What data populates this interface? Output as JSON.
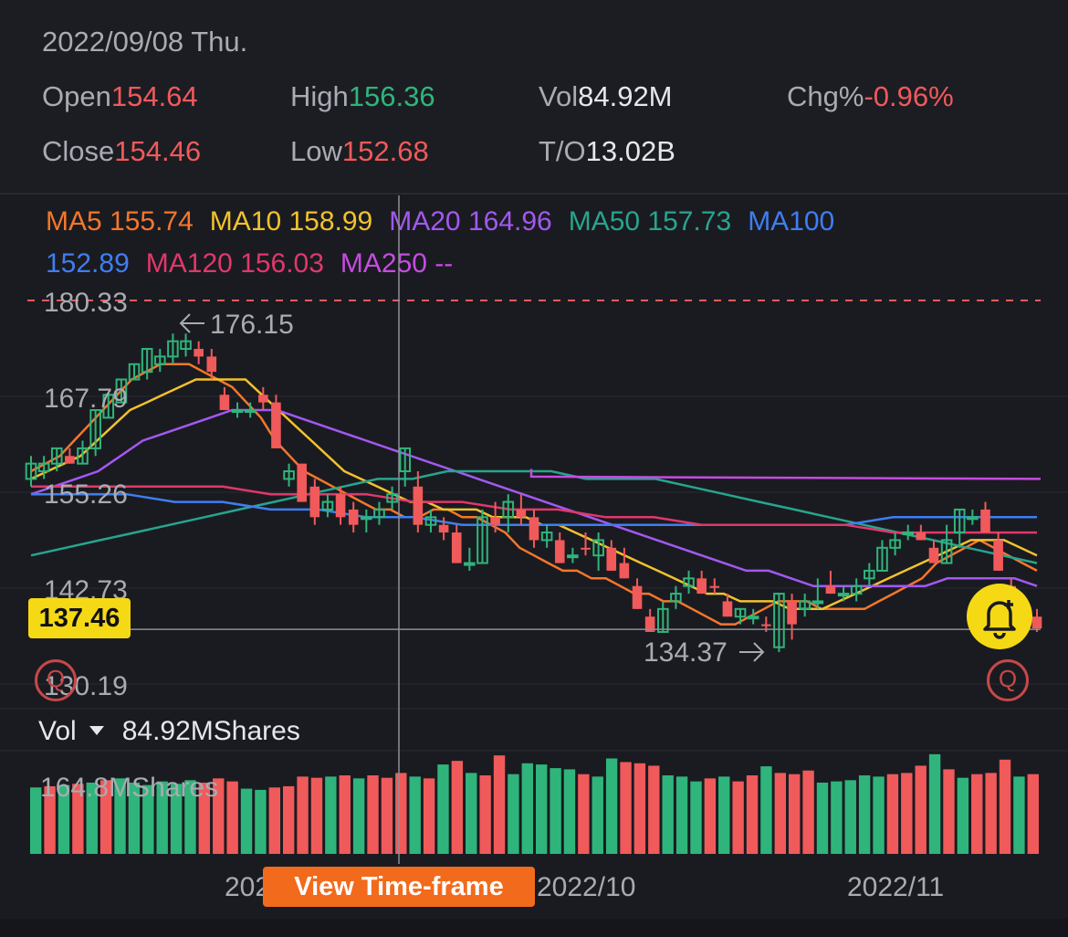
{
  "header": {
    "date": "2022/09/08 Thu.",
    "open_label": "Open",
    "open_value": "154.64",
    "high_label": "High",
    "high_value": "156.36",
    "vol_label": "Vol",
    "vol_value": "84.92M",
    "chg_label": "Chg%",
    "chg_value": "-0.96%",
    "close_label": "Close",
    "close_value": "154.46",
    "low_label": "Low",
    "low_value": "152.68",
    "to_label": "T/O",
    "to_value": "13.02B"
  },
  "ma": {
    "ma5": "MA5 155.74",
    "ma10": "MA10 158.99",
    "ma20": "MA20 164.96",
    "ma50": "MA50 157.73",
    "ma100_a": "MA100",
    "ma100_b": "152.89",
    "ma120": "MA120 156.03",
    "ma250": "MA250 --"
  },
  "colors": {
    "ma5": "#f5772b",
    "ma10": "#f2c22c",
    "ma20": "#a259f0",
    "ma50": "#27a58e",
    "ma100": "#3f7ef2",
    "ma120": "#e0386a",
    "ma250": "#c64ce0",
    "up": "#2fb57b",
    "down": "#f05a5a",
    "accent": "#f5d915",
    "button": "#f26a1b"
  },
  "price_axis": {
    "top_dashed": "180.33",
    "labels": [
      "167.79",
      "155.26",
      "142.73",
      "130.19"
    ],
    "current_price": "137.46",
    "high_marker": "176.15",
    "low_marker": "134.37"
  },
  "volume": {
    "label": "Vol",
    "value": "84.92MShares",
    "max_label": "164.8MShares"
  },
  "x_axis": {
    "labels": [
      "202",
      "2022/10",
      "2022/11"
    ]
  },
  "buttons": {
    "view_timeframe": "View Time-frame"
  },
  "icons": {
    "bell": "alarm-bell-add-icon",
    "zoom": "zoom-icon"
  },
  "chart_data": {
    "type": "candlestick",
    "price_range": [
      130.19,
      180.33
    ],
    "candles": [
      {
        "o": 157,
        "h": 160,
        "l": 156,
        "c": 159,
        "up": true
      },
      {
        "o": 158,
        "h": 160,
        "l": 157,
        "c": 159,
        "up": true
      },
      {
        "o": 159,
        "h": 161,
        "l": 158,
        "c": 161,
        "up": true
      },
      {
        "o": 160,
        "h": 161,
        "l": 159,
        "c": 159,
        "up": false
      },
      {
        "o": 159,
        "h": 162,
        "l": 159,
        "c": 161,
        "up": true
      },
      {
        "o": 161,
        "h": 166,
        "l": 160,
        "c": 166,
        "up": true
      },
      {
        "o": 165,
        "h": 168,
        "l": 165,
        "c": 168,
        "up": true
      },
      {
        "o": 167,
        "h": 170,
        "l": 167,
        "c": 170,
        "up": true
      },
      {
        "o": 170,
        "h": 172,
        "l": 170,
        "c": 172,
        "up": true
      },
      {
        "o": 171,
        "h": 174,
        "l": 170,
        "c": 174,
        "up": true
      },
      {
        "o": 172,
        "h": 174,
        "l": 171,
        "c": 173,
        "up": true
      },
      {
        "o": 173,
        "h": 176,
        "l": 172,
        "c": 175,
        "up": true
      },
      {
        "o": 174,
        "h": 176,
        "l": 173,
        "c": 175,
        "up": true
      },
      {
        "o": 174,
        "h": 175,
        "l": 172,
        "c": 173,
        "up": false
      },
      {
        "o": 173,
        "h": 174,
        "l": 170,
        "c": 171,
        "up": false
      },
      {
        "o": 168,
        "h": 169,
        "l": 166,
        "c": 166,
        "up": false
      },
      {
        "o": 166,
        "h": 167,
        "l": 165,
        "c": 166,
        "up": true
      },
      {
        "o": 166,
        "h": 167,
        "l": 165,
        "c": 166,
        "up": true
      },
      {
        "o": 168,
        "h": 169,
        "l": 166,
        "c": 167,
        "up": false
      },
      {
        "o": 167,
        "h": 168,
        "l": 161,
        "c": 161,
        "up": false
      },
      {
        "o": 157,
        "h": 159,
        "l": 156,
        "c": 158,
        "up": true
      },
      {
        "o": 159,
        "h": 159,
        "l": 154,
        "c": 154,
        "up": false
      },
      {
        "o": 156,
        "h": 157,
        "l": 151,
        "c": 152,
        "up": false
      },
      {
        "o": 153,
        "h": 155,
        "l": 152,
        "c": 154,
        "up": true
      },
      {
        "o": 155,
        "h": 156,
        "l": 151,
        "c": 152,
        "up": false
      },
      {
        "o": 153,
        "h": 154,
        "l": 150,
        "c": 151,
        "up": false
      },
      {
        "o": 152,
        "h": 153,
        "l": 150,
        "c": 152,
        "up": true
      },
      {
        "o": 152,
        "h": 154,
        "l": 151,
        "c": 153,
        "up": true
      },
      {
        "o": 154,
        "h": 156,
        "l": 153,
        "c": 155,
        "up": true
      },
      {
        "o": 158,
        "h": 161,
        "l": 156,
        "c": 161,
        "up": true
      },
      {
        "o": 156,
        "h": 158,
        "l": 150,
        "c": 151,
        "up": false
      },
      {
        "o": 152,
        "h": 153,
        "l": 150,
        "c": 151,
        "up": true
      },
      {
        "o": 151,
        "h": 152,
        "l": 149,
        "c": 150,
        "up": false
      },
      {
        "o": 150,
        "h": 151,
        "l": 146,
        "c": 146,
        "up": false
      },
      {
        "o": 146,
        "h": 148,
        "l": 145,
        "c": 146,
        "up": true
      },
      {
        "o": 146,
        "h": 153,
        "l": 146,
        "c": 152,
        "up": true
      },
      {
        "o": 152,
        "h": 154,
        "l": 150,
        "c": 151,
        "up": false
      },
      {
        "o": 152,
        "h": 155,
        "l": 150,
        "c": 154,
        "up": true
      },
      {
        "o": 153,
        "h": 155,
        "l": 151,
        "c": 152,
        "up": false
      },
      {
        "o": 152,
        "h": 153,
        "l": 148,
        "c": 149,
        "up": false
      },
      {
        "o": 150,
        "h": 151,
        "l": 148,
        "c": 149,
        "up": true
      },
      {
        "o": 149,
        "h": 150,
        "l": 146,
        "c": 146,
        "up": false
      },
      {
        "o": 147,
        "h": 148,
        "l": 146,
        "c": 147,
        "up": true
      },
      {
        "o": 148,
        "h": 150,
        "l": 147,
        "c": 148,
        "up": false
      },
      {
        "o": 147,
        "h": 150,
        "l": 145,
        "c": 149,
        "up": true
      },
      {
        "o": 148,
        "h": 149,
        "l": 145,
        "c": 145,
        "up": false
      },
      {
        "o": 146,
        "h": 148,
        "l": 144,
        "c": 144,
        "up": false
      },
      {
        "o": 143,
        "h": 144,
        "l": 140,
        "c": 140,
        "up": false
      },
      {
        "o": 139,
        "h": 140,
        "l": 137,
        "c": 137,
        "up": false
      },
      {
        "o": 137,
        "h": 141,
        "l": 137,
        "c": 140,
        "up": true
      },
      {
        "o": 141,
        "h": 143,
        "l": 140,
        "c": 142,
        "up": true
      },
      {
        "o": 143,
        "h": 145,
        "l": 142,
        "c": 144,
        "up": true
      },
      {
        "o": 144,
        "h": 145,
        "l": 142,
        "c": 142,
        "up": false
      },
      {
        "o": 143,
        "h": 144,
        "l": 142,
        "c": 143,
        "up": false
      },
      {
        "o": 141,
        "h": 142,
        "l": 139,
        "c": 139,
        "up": false
      },
      {
        "o": 139,
        "h": 140,
        "l": 138,
        "c": 140,
        "up": true
      },
      {
        "o": 139,
        "h": 140,
        "l": 138,
        "c": 139,
        "up": true
      },
      {
        "o": 138,
        "h": 139,
        "l": 137,
        "c": 138,
        "up": false
      },
      {
        "o": 135,
        "h": 142,
        "l": 134.37,
        "c": 142,
        "up": true
      },
      {
        "o": 141,
        "h": 142,
        "l": 136,
        "c": 138,
        "up": false
      },
      {
        "o": 140,
        "h": 142,
        "l": 139,
        "c": 141,
        "up": true
      },
      {
        "o": 141,
        "h": 144,
        "l": 140,
        "c": 141,
        "up": true
      },
      {
        "o": 143,
        "h": 145,
        "l": 142,
        "c": 142,
        "up": false
      },
      {
        "o": 142,
        "h": 143,
        "l": 141,
        "c": 142,
        "up": true
      },
      {
        "o": 142,
        "h": 144,
        "l": 141,
        "c": 143,
        "up": true
      },
      {
        "o": 144,
        "h": 146,
        "l": 143,
        "c": 145,
        "up": true
      },
      {
        "o": 145,
        "h": 149,
        "l": 145,
        "c": 148,
        "up": true
      },
      {
        "o": 148,
        "h": 150,
        "l": 147,
        "c": 149,
        "up": true
      },
      {
        "o": 150,
        "h": 151,
        "l": 149,
        "c": 150,
        "up": true
      },
      {
        "o": 150,
        "h": 151,
        "l": 149,
        "c": 149,
        "up": false
      },
      {
        "o": 148,
        "h": 149,
        "l": 146,
        "c": 146,
        "up": false
      },
      {
        "o": 146,
        "h": 151,
        "l": 146,
        "c": 149,
        "up": true
      },
      {
        "o": 150,
        "h": 153,
        "l": 148,
        "c": 153,
        "up": true
      },
      {
        "o": 152,
        "h": 153,
        "l": 151,
        "c": 152,
        "up": true
      },
      {
        "o": 153,
        "h": 154,
        "l": 150,
        "c": 150,
        "up": false
      },
      {
        "o": 149,
        "h": 150,
        "l": 145,
        "c": 145,
        "up": false
      },
      {
        "o": 143,
        "h": 144,
        "l": 141,
        "c": 141,
        "up": false
      },
      {
        "o": 140,
        "h": 141,
        "l": 138,
        "c": 139,
        "up": false
      },
      {
        "o": 139,
        "h": 140,
        "l": 137,
        "c": 137.46,
        "up": false
      }
    ],
    "ma_series": {
      "MA5": [
        158,
        159,
        160,
        162,
        164,
        166,
        168,
        170,
        171,
        172,
        172,
        172,
        171,
        170,
        169,
        167,
        165,
        162,
        160,
        158,
        157,
        156,
        155,
        154,
        153,
        153,
        152,
        152,
        153,
        153,
        152,
        152,
        151,
        150,
        148,
        147,
        146,
        145,
        145,
        144,
        144,
        143,
        142,
        142,
        141,
        141,
        140,
        139,
        138,
        138,
        139,
        140,
        141,
        141,
        141,
        140,
        140,
        140,
        140,
        141,
        142,
        143,
        144,
        146,
        147,
        148,
        149,
        148,
        147,
        146,
        145
      ],
      "MA10": [
        157,
        158,
        159,
        160,
        162,
        164,
        166,
        167,
        168,
        169,
        170,
        170,
        170,
        170,
        168,
        166,
        164,
        162,
        160,
        158,
        157,
        156,
        155,
        154,
        154,
        153,
        153,
        153,
        152,
        152,
        152,
        151,
        151,
        150,
        149,
        148,
        147,
        146,
        145,
        144,
        143,
        142,
        142,
        141,
        141,
        141,
        140,
        140,
        140,
        141,
        142,
        143,
        144,
        145,
        146,
        147,
        148,
        149,
        149,
        149,
        148,
        147
      ],
      "MA20": [
        155,
        156,
        157,
        158,
        160,
        162,
        163,
        164,
        165,
        166,
        166,
        166,
        165,
        164,
        163,
        162,
        161,
        160,
        159,
        158,
        157,
        156,
        155,
        154,
        153,
        152,
        151,
        150,
        149,
        148,
        147,
        146,
        145,
        145,
        144,
        143,
        143,
        143,
        143,
        143,
        143,
        144,
        144,
        144,
        144,
        143
      ],
      "MA50": [
        147,
        148,
        149,
        150,
        151,
        152,
        153,
        154,
        155,
        156,
        157,
        157,
        158,
        158,
        158,
        158,
        157,
        157,
        157,
        156,
        155,
        154,
        153,
        152,
        151,
        150,
        149,
        148,
        147,
        146
      ],
      "MA100": [
        155,
        155,
        155,
        154,
        154,
        153,
        153,
        152,
        152,
        151,
        151,
        151,
        151,
        151,
        151,
        151,
        151,
        151,
        152,
        152,
        152,
        152
      ],
      "MA120": [
        156,
        156,
        156,
        156,
        156,
        155,
        155,
        155,
        154,
        154,
        153,
        153,
        152,
        152,
        151,
        151,
        151,
        151,
        150,
        150,
        150,
        150
      ]
    },
    "volume": {
      "max": 164.8,
      "bars": [
        {
          "v": 110,
          "up": true
        },
        {
          "v": 112,
          "up": false
        },
        {
          "v": 114,
          "up": true
        },
        {
          "v": 116,
          "up": false
        },
        {
          "v": 118,
          "up": true
        },
        {
          "v": 122,
          "up": false
        },
        {
          "v": 125,
          "up": true
        },
        {
          "v": 118,
          "up": true
        },
        {
          "v": 114,
          "up": true
        },
        {
          "v": 120,
          "up": true
        },
        {
          "v": 116,
          "up": true
        },
        {
          "v": 122,
          "up": true
        },
        {
          "v": 118,
          "up": false
        },
        {
          "v": 125,
          "up": false
        },
        {
          "v": 120,
          "up": false
        },
        {
          "v": 108,
          "up": true
        },
        {
          "v": 106,
          "up": true
        },
        {
          "v": 110,
          "up": false
        },
        {
          "v": 112,
          "up": false
        },
        {
          "v": 128,
          "up": false
        },
        {
          "v": 126,
          "up": false
        },
        {
          "v": 128,
          "up": true
        },
        {
          "v": 130,
          "up": false
        },
        {
          "v": 125,
          "up": true
        },
        {
          "v": 130,
          "up": false
        },
        {
          "v": 126,
          "up": false
        },
        {
          "v": 134,
          "up": false
        },
        {
          "v": 128,
          "up": true
        },
        {
          "v": 125,
          "up": false
        },
        {
          "v": 148,
          "up": true
        },
        {
          "v": 154,
          "up": false
        },
        {
          "v": 134,
          "up": true
        },
        {
          "v": 130,
          "up": false
        },
        {
          "v": 163,
          "up": false
        },
        {
          "v": 132,
          "up": true
        },
        {
          "v": 150,
          "up": true
        },
        {
          "v": 148,
          "up": true
        },
        {
          "v": 142,
          "up": true
        },
        {
          "v": 140,
          "up": true
        },
        {
          "v": 132,
          "up": false
        },
        {
          "v": 128,
          "up": true
        },
        {
          "v": 158,
          "up": true
        },
        {
          "v": 152,
          "up": false
        },
        {
          "v": 150,
          "up": false
        },
        {
          "v": 146,
          "up": false
        },
        {
          "v": 130,
          "up": true
        },
        {
          "v": 128,
          "up": true
        },
        {
          "v": 120,
          "up": true
        },
        {
          "v": 125,
          "up": false
        },
        {
          "v": 128,
          "up": true
        },
        {
          "v": 120,
          "up": false
        },
        {
          "v": 130,
          "up": false
        },
        {
          "v": 145,
          "up": true
        },
        {
          "v": 134,
          "up": false
        },
        {
          "v": 132,
          "up": false
        },
        {
          "v": 138,
          "up": false
        },
        {
          "v": 118,
          "up": true
        },
        {
          "v": 120,
          "up": true
        },
        {
          "v": 122,
          "up": true
        },
        {
          "v": 130,
          "up": true
        },
        {
          "v": 128,
          "up": true
        },
        {
          "v": 132,
          "up": false
        },
        {
          "v": 134,
          "up": false
        },
        {
          "v": 146,
          "up": false
        },
        {
          "v": 165,
          "up": true
        },
        {
          "v": 140,
          "up": false
        },
        {
          "v": 126,
          "up": true
        },
        {
          "v": 132,
          "up": false
        },
        {
          "v": 134,
          "up": false
        },
        {
          "v": 156,
          "up": false
        },
        {
          "v": 128,
          "up": true
        },
        {
          "v": 132,
          "up": false
        }
      ]
    }
  }
}
